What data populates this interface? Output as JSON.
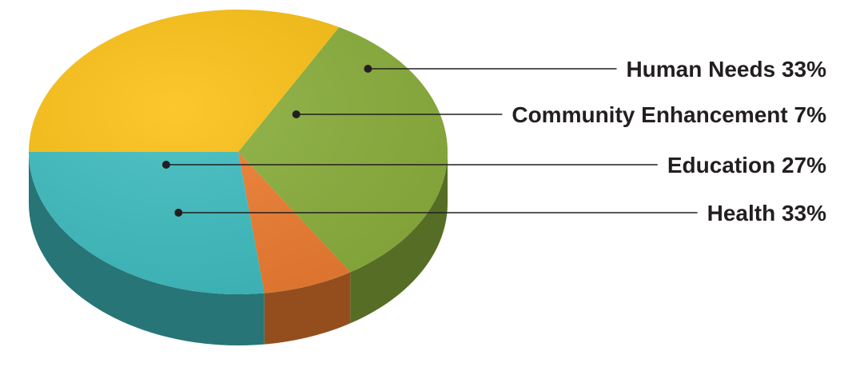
{
  "chart_data": {
    "type": "pie",
    "title": "",
    "slices": [
      {
        "name": "Human Needs",
        "value": 33,
        "label": "Human Needs 33%",
        "color": "#8bb03d"
      },
      {
        "name": "Community Enhancement",
        "value": 7,
        "label": "Community Enhancement 7%",
        "color": "#ee7d31"
      },
      {
        "name": "Education",
        "value": 27,
        "label": "Education 27%",
        "color": "#3fbdc0"
      },
      {
        "name": "Health",
        "value": 33,
        "label": "Health 33%",
        "color": "#fbc116"
      }
    ],
    "style": "3d",
    "legend": "callout-right",
    "leader_line_color": "#231f20"
  }
}
